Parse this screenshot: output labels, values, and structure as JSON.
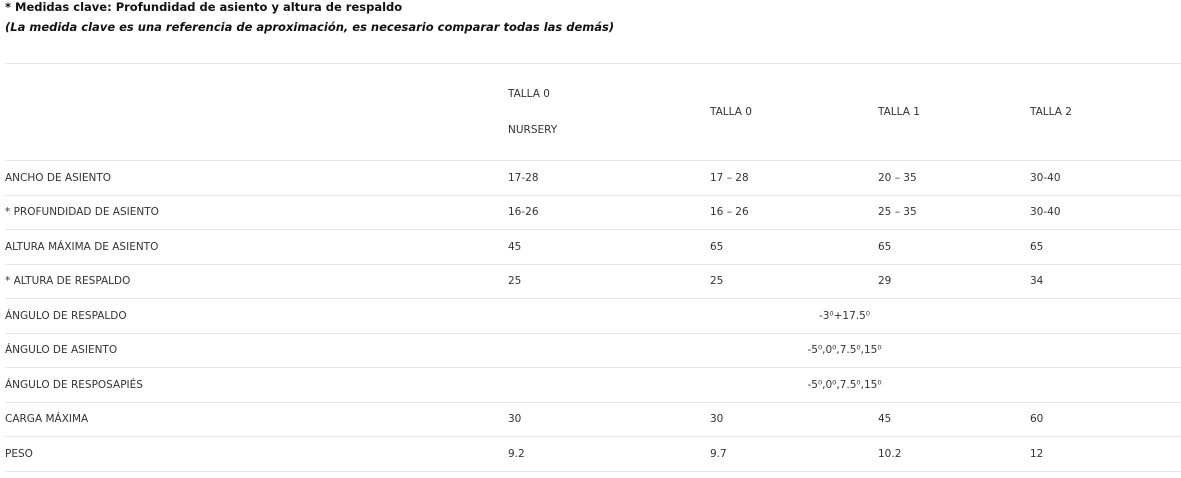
{
  "notes": {
    "key_measures": "* Medidas clave: Profundidad de asiento y altura de respaldo",
    "disclaimer": "(La medida clave es una referencia de aproximación, es necesario comparar todas las demás)"
  },
  "table": {
    "headers": [
      {
        "line1": "TALLA 0",
        "line2": "NURSERY"
      },
      "TALLA 0",
      "TALLA 1",
      "TALLA 2"
    ],
    "rows": [
      {
        "label": "ANCHO DE ASIENTO",
        "values": [
          "17-28",
          "17 – 28",
          "20 – 35",
          "30-40"
        ]
      },
      {
        "label": "* PROFUNDIDAD DE ASIENTO",
        "values": [
          "16-26",
          "16 – 26",
          "25 – 35",
          "30-40"
        ]
      },
      {
        "label": "ALTURA MÁXIMA DE ASIENTO",
        "values": [
          "45",
          "65",
          "65",
          "65"
        ]
      },
      {
        "label": "* ALTURA DE RESPALDO",
        "values": [
          "25",
          "25",
          "29",
          "34"
        ]
      },
      {
        "label": "ÁNGULO DE RESPALDO",
        "merged": "-3⁰+17.5⁰"
      },
      {
        "label": "ÁNGULO DE ASIENTO",
        "merged": "-5⁰,0⁰,7.5⁰,15⁰"
      },
      {
        "label": "ÁNGULO DE RESPOSAPIÉS",
        "merged": "-5⁰,0⁰,7.5⁰,15⁰"
      },
      {
        "label": "CARGA MÁXIMA",
        "values": [
          "30",
          "30",
          "45",
          "60"
        ]
      },
      {
        "label": "PESO",
        "values": [
          "9.2",
          "9.7",
          "10.2",
          "12"
        ]
      }
    ]
  }
}
